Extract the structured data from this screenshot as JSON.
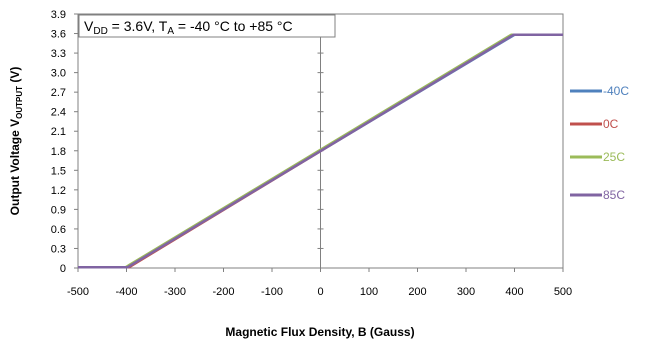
{
  "chart_data": {
    "type": "line",
    "annotation": {
      "parts": [
        "V",
        "DD",
        " = 3.6V, T",
        "A",
        " = -40 °C to +85 °C"
      ]
    },
    "xlabel": "Magnetic Flux Density, B (Gauss)",
    "ylabel": {
      "parts": [
        "Output Voltage V",
        "OUTPUT",
        " (V)"
      ]
    },
    "xlim": [
      -500,
      500
    ],
    "ylim": [
      0,
      3.9
    ],
    "x_ticks": [
      "-500",
      "-400",
      "-300",
      "-200",
      "-100",
      "0",
      "100",
      "200",
      "300",
      "400",
      "500"
    ],
    "y_ticks": [
      "0",
      "0.3",
      "0.6",
      "0.9",
      "1.2",
      "1.5",
      "1.8",
      "2.1",
      "2.4",
      "2.7",
      "3.0",
      "3.3",
      "3.6",
      "3.9"
    ],
    "grid": false,
    "legend_position": "right",
    "series": [
      {
        "name": "-40C",
        "color": "#4F81BD",
        "x": [
          -500,
          -400,
          400,
          500
        ],
        "y": [
          0.01,
          0.01,
          3.58,
          3.58
        ]
      },
      {
        "name": "0C",
        "color": "#C0504D",
        "x": [
          -500,
          -395,
          395,
          500
        ],
        "y": [
          0.01,
          0.01,
          3.58,
          3.58
        ]
      },
      {
        "name": "25C",
        "color": "#9BBB59",
        "x": [
          -500,
          -402,
          393,
          500
        ],
        "y": [
          0.01,
          0.01,
          3.58,
          3.58
        ]
      },
      {
        "name": "85C",
        "color": "#8064A2",
        "x": [
          -500,
          -398,
          398,
          500
        ],
        "y": [
          0.01,
          0.01,
          3.58,
          3.58
        ]
      }
    ]
  }
}
